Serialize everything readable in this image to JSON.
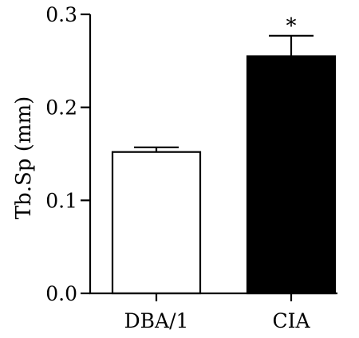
{
  "chart_data": {
    "type": "bar",
    "title": "",
    "xlabel": "",
    "ylabel": "Tb.Sp (mm)",
    "ylim": [
      0,
      0.3
    ],
    "yticks": [
      "0.0",
      "0.1",
      "0.2",
      "0.3"
    ],
    "categories": [
      "DBA/1",
      "CIA"
    ],
    "values": [
      0.152,
      0.255
    ],
    "errors": [
      0.005,
      0.022
    ],
    "colors": [
      "#ffffff",
      "#000000"
    ],
    "annotations": [
      "",
      "*"
    ],
    "grid": false
  }
}
